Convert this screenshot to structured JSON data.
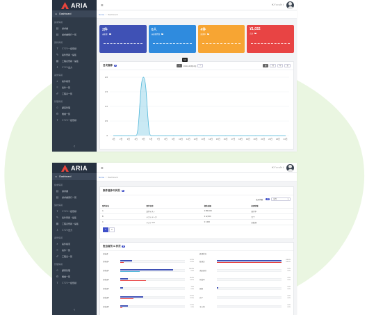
{
  "colors": {
    "sidebar": "#2f3a48",
    "blue": "#4f7fd6",
    "green_blob": "#eaf6e1"
  },
  "app": {
    "name": "ARIA",
    "menu_icon": "menu-icon"
  },
  "user": {
    "name": "ＫＹｏｓｈｉ"
  },
  "breadcrumb": {
    "home": "Home",
    "current": "Dashboard"
  },
  "sidebar": {
    "top": "Dashboard",
    "sections": [
      {
        "title": "請求情報",
        "items": [
          "請求書",
          "請求書発行一覧"
        ]
      },
      {
        "title": "契約情報",
        "items": [
          "ＣＳＶ一括登録",
          "案件登録・編集",
          "工程表登録・編集",
          "ＣＳＶ出力"
        ]
      },
      {
        "title": "案件情報",
        "items": [
          "案件検索",
          "案件一覧",
          "工程表一覧"
        ]
      },
      {
        "title": "管理情報",
        "items": [
          "顧客管理",
          "機械一覧",
          "ＣＳＶ一括登録"
        ]
      }
    ]
  },
  "cards": [
    {
      "value": "2件",
      "label": "未処理",
      "badge": "1",
      "color": "#3f51b5"
    },
    {
      "value": "0人",
      "label": "未処理件数",
      "badge": "0",
      "color": "#2f8bde"
    },
    {
      "value": "4件",
      "label": "処理中",
      "badge": "3",
      "color": "#f7a533"
    },
    {
      "value": "¥1,032",
      "label": "合計",
      "badge": "1",
      "color": "#e84444"
    }
  ],
  "chart_panel": {
    "title": "日次推移",
    "count": "1",
    "date": "2021年06月16日",
    "tooltip": "1日",
    "prev_btn": "<",
    "next_btn": ">",
    "range_btns": [
      "週",
      "月",
      "年",
      "全"
    ]
  },
  "chart_data": {
    "type": "area",
    "x": [
      "1日",
      "2日",
      "3日",
      "4日",
      "5日",
      "6日",
      "7日",
      "8日",
      "9日",
      "10日",
      "11日",
      "12日",
      "13日",
      "14日",
      "15日",
      "16日",
      "17日",
      "18日",
      "19日",
      "20日",
      "21日",
      "22日",
      "23日",
      "24日"
    ],
    "values": [
      0,
      0,
      0,
      0,
      2.0,
      0,
      0,
      0,
      0,
      0,
      0,
      0,
      0,
      0,
      0,
      0,
      0,
      0,
      0,
      0,
      0,
      0,
      0,
      0
    ],
    "ylim": [
      0,
      2.0
    ],
    "yticks": [
      "2.0",
      "1.5",
      "1.0",
      "0.5",
      "0"
    ],
    "color": "#4db6d9"
  },
  "table_panel": {
    "title": "案件進捗の状況",
    "count": "3",
    "filter_label": "表示件数",
    "filter_badge": "10",
    "filter_select": "全件",
    "headers": [
      "案件担当",
      "案件名称",
      "契約金額",
      "処理状態"
    ],
    "rows": [
      [
        "A",
        "案件テスト",
        "¥ 880,000",
        "進行中"
      ],
      [
        "B",
        "テストデータ",
        "¥ 12,000",
        "完了"
      ],
      [
        "C",
        "テスト test",
        "¥ 3,000",
        "未処理"
      ]
    ],
    "pager": [
      "1",
      "2"
    ]
  },
  "progress_panel": {
    "title": "担当者別 & 状況",
    "count": "2",
    "left_title": "担当者",
    "right_title": "処理状況",
    "left": [
      {
        "name": "担当者1",
        "v1": "87.5%",
        "v2": "12.5%",
        "p1": 0.18,
        "p2": 0.05
      },
      {
        "name": "担当者2",
        "v1": "100.0%",
        "v2": "0.0%",
        "p1": 0.82,
        "p2": 0.3
      },
      {
        "name": "担当者3",
        "v1": "85.3%",
        "v2": "14.7%",
        "p1": 0.12,
        "p2": 0.4
      },
      {
        "name": "担当者4",
        "v1": "1.0%",
        "v2": "0.0%",
        "p1": 0.04,
        "p2": 0
      },
      {
        "name": "担当者5",
        "v1": "87.5%",
        "v2": "12.5%",
        "p1": 0.35,
        "p2": 0.2
      },
      {
        "name": "担当者6",
        "v1": "12.5%",
        "v2": "0.0%",
        "p1": 0.12,
        "p2": 0.03
      }
    ],
    "right": [
      {
        "name": "処理済",
        "v1": "100.0%",
        "v2": "100.0%",
        "p1": 1,
        "p2": 1
      },
      {
        "name": "未処理分",
        "v1": "0.0%",
        "v2": "0.0%",
        "p1": 0,
        "p2": 0
      },
      {
        "name": "作業中",
        "v1": "0.0%",
        "v2": "0.0%",
        "p1": 0,
        "p2": 0
      },
      {
        "name": "保留",
        "v1": "0.0%",
        "v2": "0.0%",
        "p1": 0.02,
        "p2": 0
      },
      {
        "name": "完了",
        "v1": "0.0%",
        "v2": "0.0%",
        "p1": 0,
        "p2": 0
      },
      {
        "name": "その他",
        "v1": "0.0%",
        "v2": "0.0%",
        "p1": 0,
        "p2": 0
      }
    ]
  }
}
